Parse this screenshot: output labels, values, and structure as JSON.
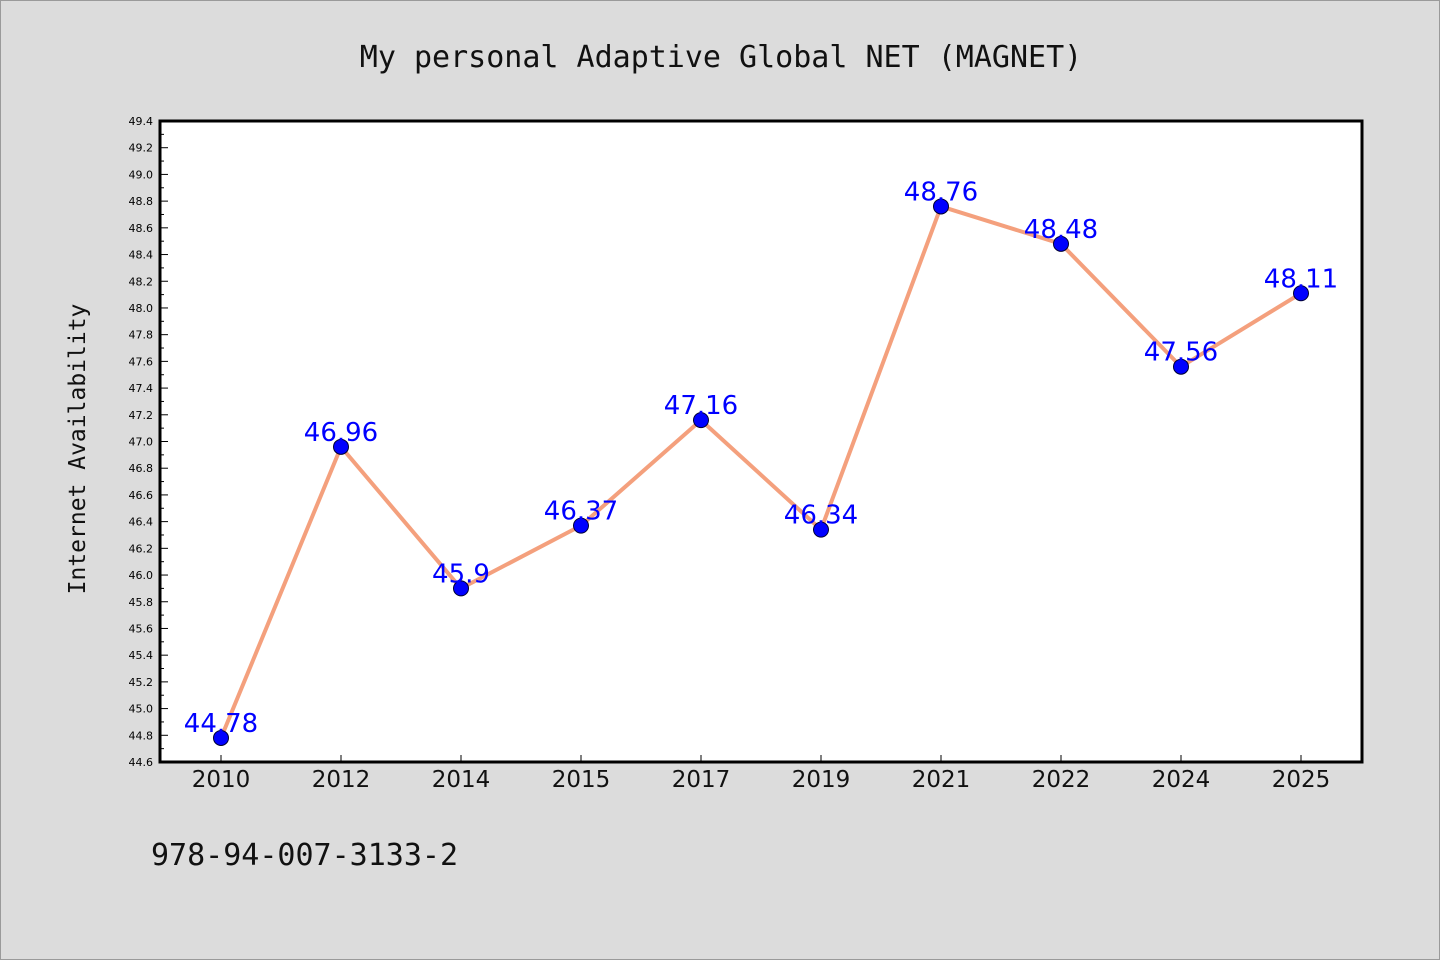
{
  "chart_data": {
    "type": "line",
    "title": "My personal Adaptive Global NET (MAGNET)",
    "xlabel": "",
    "ylabel": "Internet Availability",
    "categories": [
      "2010",
      "2012",
      "2014",
      "2015",
      "2017",
      "2019",
      "2021",
      "2022",
      "2024",
      "2025"
    ],
    "series": [
      {
        "values": [
          44.78,
          46.96,
          45.9,
          46.37,
          47.16,
          46.34,
          48.76,
          48.48,
          47.56,
          48.11
        ],
        "data_labels": [
          "44.78",
          "46.96",
          "45.9",
          "46.37",
          "47.16",
          "46.34",
          "48.76",
          "48.48",
          "47.56",
          "48.11"
        ],
        "line_color": "#f4a07d",
        "marker_color": "#0000ff"
      }
    ],
    "ylim": [
      44.6,
      49.4
    ],
    "y_ticks": [
      "44.6",
      "44.8",
      "45.0",
      "45.2",
      "45.4",
      "45.6",
      "45.8",
      "46.0",
      "46.2",
      "46.4",
      "46.6",
      "46.8",
      "47.0",
      "47.2",
      "47.4",
      "47.6",
      "47.8",
      "48.0",
      "48.2",
      "48.4",
      "48.6",
      "48.8",
      "49.0",
      "49.2",
      "49.4"
    ],
    "grid": false,
    "legend": "none"
  },
  "footnote": "978-94-007-3133-2",
  "colors": {
    "background": "#dcdcdc",
    "plot_background": "#ffffff",
    "line": "#f4a07d",
    "marker": "#0000ff",
    "data_label": "#0000ff"
  }
}
